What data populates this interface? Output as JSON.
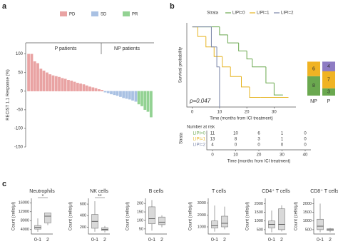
{
  "chart_data": [
    {
      "type": "bar",
      "panel": "a",
      "ylabel": "RECIST 1.1 Response (%)",
      "ylim": [
        -150,
        130
      ],
      "yticks": [
        100,
        50,
        0,
        -50,
        -100,
        -150
      ],
      "annotations": [
        "P patients",
        "NP patients"
      ],
      "series": [
        {
          "name": "PD",
          "color": "#e9a3a3",
          "values": [
            100,
            100,
            80,
            75,
            60,
            55,
            50,
            45,
            42,
            40,
            38,
            35,
            33,
            30,
            28,
            25,
            22,
            20,
            18,
            15,
            12,
            10,
            8,
            5,
            3,
            null,
            null,
            null,
            null,
            null,
            null,
            null,
            null,
            null,
            null,
            null,
            null,
            null,
            null,
            null,
            null
          ]
        },
        {
          "name": "SD",
          "color": "#a9c1e3",
          "values": [
            null,
            null,
            null,
            null,
            null,
            null,
            null,
            null,
            null,
            null,
            null,
            null,
            null,
            null,
            null,
            null,
            null,
            null,
            null,
            null,
            null,
            null,
            null,
            null,
            null,
            -3,
            -5,
            -8,
            -10,
            -12,
            -15,
            -18,
            -20,
            -22,
            -25,
            -28,
            null,
            null,
            null,
            null,
            null
          ]
        },
        {
          "name": "PR",
          "color": "#93d293",
          "values": [
            null,
            null,
            null,
            null,
            null,
            null,
            null,
            null,
            null,
            null,
            null,
            null,
            null,
            null,
            null,
            null,
            null,
            null,
            null,
            null,
            null,
            null,
            null,
            null,
            null,
            null,
            null,
            null,
            null,
            null,
            null,
            null,
            null,
            null,
            null,
            null,
            -35,
            -40,
            -50,
            -55,
            -70
          ]
        }
      ]
    },
    {
      "type": "line",
      "panel": "b",
      "legend_title": "Strata",
      "ylabel": "Survival probability",
      "xlabel": "Time (months from ICI treatment)",
      "annotation": "p=0.047",
      "xlim": [
        -2,
        38
      ],
      "xticks": [
        0,
        10,
        20,
        30
      ],
      "ylim": [
        0,
        1.05
      ],
      "series": [
        {
          "name": "LIPI=0",
          "color": "#6aa84f",
          "x": [
            0,
            10,
            13,
            17,
            20,
            22,
            27,
            30,
            33
          ],
          "values": [
            1,
            0.9,
            0.8,
            0.7,
            0.6,
            0.5,
            0.3,
            0.15,
            0.15
          ]
        },
        {
          "name": "LIPI=1",
          "color": "#e6b422",
          "x": [
            0,
            2,
            5,
            8,
            11,
            14,
            18,
            21,
            25,
            35
          ],
          "values": [
            1,
            0.88,
            0.75,
            0.63,
            0.5,
            0.38,
            0.25,
            0.12,
            0.12,
            0.12
          ]
        },
        {
          "name": "LIPI=2",
          "color": "#7b86a8",
          "x": [
            0,
            7,
            9,
            10
          ],
          "values": [
            1,
            0.75,
            0.5,
            0
          ]
        }
      ]
    },
    {
      "type": "stacked_bar",
      "categories": [
        "NP",
        "P"
      ],
      "series": [
        {
          "name": "LIPI=0",
          "color": "#6aa84f",
          "values": [
            8,
            3
          ]
        },
        {
          "name": "LIPI=1",
          "color": "#f0b323",
          "values": [
            6,
            7
          ]
        },
        {
          "name": "LIPI=2",
          "color": "#8e7cc3",
          "values": [
            null,
            4
          ]
        }
      ]
    },
    {
      "type": "table",
      "title": "Number at risk",
      "row_header": "Strata",
      "xlabel": "Time (months from ICI treatment)",
      "xlim": [
        0,
        40
      ],
      "xticks": [
        0,
        10,
        20,
        30,
        40
      ],
      "rows": [
        {
          "name": "LIPI=0",
          "color": "#6aa84f",
          "values": [
            11,
            10,
            6,
            1,
            0
          ]
        },
        {
          "name": "LIPI=1",
          "color": "#e6b422",
          "values": [
            13,
            8,
            3,
            1,
            0
          ]
        },
        {
          "name": "LIPI=2",
          "color": "#7b86a8",
          "values": [
            4,
            0,
            0,
            0,
            0
          ]
        }
      ]
    },
    {
      "type": "box",
      "panel": "c",
      "title": "Neutrophils",
      "ylabel": "Count (cells/μl)",
      "categories": [
        "0-1",
        "2"
      ],
      "ylim": [
        2000,
        18000
      ],
      "yticks": [
        4000,
        8000,
        12000,
        16000
      ],
      "significance": "*",
      "boxes": [
        {
          "whislo": 3000,
          "q1": 4200,
          "med": 5000,
          "q3": 5800,
          "whishi": 9000
        },
        {
          "whislo": 6000,
          "q1": 7000,
          "med": 10000,
          "q3": 11500,
          "whishi": 11500
        }
      ]
    },
    {
      "type": "box",
      "title": "NK cells",
      "ylabel": "Count (cells/μl)",
      "categories": [
        "0-1",
        "2"
      ],
      "ylim": [
        80,
        700
      ],
      "yticks": [
        200,
        400,
        600
      ],
      "significance": "**",
      "boxes": [
        {
          "whislo": 120,
          "q1": 180,
          "med": 300,
          "q3": 420,
          "whishi": 650
        },
        {
          "whislo": 110,
          "q1": 140,
          "med": 160,
          "q3": 190,
          "whishi": 220
        }
      ]
    },
    {
      "type": "box",
      "title": "B cells",
      "ylabel": "Count (cells/μl)",
      "categories": [
        "0-1",
        "2"
      ],
      "ylim": [
        20,
        230
      ],
      "yticks": [
        50,
        100,
        150,
        200
      ],
      "boxes": [
        {
          "whislo": 40,
          "q1": 80,
          "med": 110,
          "q3": 180,
          "whishi": 220
        },
        {
          "whislo": 60,
          "q1": 75,
          "med": 90,
          "q3": 120,
          "whishi": 130
        }
      ]
    },
    {
      "type": "box",
      "title": "T cells",
      "ylabel": "Count (cells/μl)",
      "categories": [
        "0-1",
        "2"
      ],
      "ylim": [
        400,
        3400
      ],
      "yticks": [
        1000,
        2000,
        3000
      ],
      "boxes": [
        {
          "whislo": 600,
          "q1": 900,
          "med": 1100,
          "q3": 1500,
          "whishi": 2800
        },
        {
          "whislo": 800,
          "q1": 1000,
          "med": 1300,
          "q3": 1900,
          "whishi": 2700
        }
      ]
    },
    {
      "type": "box",
      "title": "CD4⁺ T cells",
      "ylabel": "Count (cells/μl)",
      "categories": [
        "0-1",
        "2"
      ],
      "ylim": [
        250,
        2300
      ],
      "yticks": [
        500,
        1000,
        1500,
        2000
      ],
      "boxes": [
        {
          "whislo": 350,
          "q1": 600,
          "med": 800,
          "q3": 1000,
          "whishi": 1600
        },
        {
          "whislo": 400,
          "q1": 500,
          "med": 800,
          "q3": 1700,
          "whishi": 1900
        }
      ]
    },
    {
      "type": "box",
      "title": "CD8⁺ T cells",
      "ylabel": "Count (cells/μl)",
      "categories": [
        "0-1",
        "2"
      ],
      "ylim": [
        250,
        2300
      ],
      "yticks": [
        500,
        1000,
        1500,
        2000
      ],
      "boxes": [
        {
          "whislo": 350,
          "q1": 500,
          "med": 700,
          "q3": 1100,
          "whishi": 2000
        },
        {
          "whislo": 350,
          "q1": 450,
          "med": 500,
          "q3": 550,
          "whishi": 600
        }
      ]
    }
  ]
}
